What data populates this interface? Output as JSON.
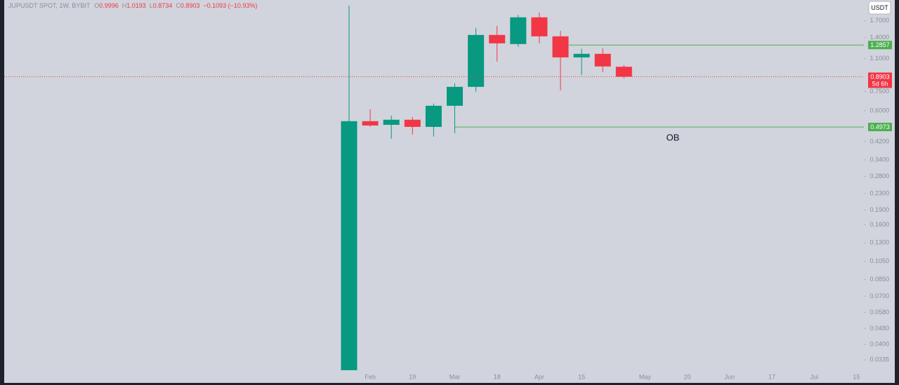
{
  "chart_data": {
    "type": "candlestick",
    "title": "JUPUSDT SPOT, 1W, BYBIT",
    "ohlc_legend": {
      "open": "O",
      "high": "H",
      "low": "L",
      "close": "C",
      "change": "−0.1093 (−10.93%)"
    },
    "currency": "USDT",
    "categories": [
      null,
      "Feb",
      null,
      "19",
      null,
      "Mar",
      null,
      "18",
      null,
      "Apr",
      null,
      "15",
      null,
      null,
      "May",
      null,
      "20",
      null,
      "Jun",
      null,
      "17",
      null,
      "Jul",
      null,
      "15"
    ],
    "open": [
      0.0297,
      0.532,
      0.51,
      0.541,
      0.498,
      0.636,
      0.792,
      1.445,
      1.3,
      1.772,
      1.422,
      1.114,
      1.161,
      0.9996,
      null,
      null,
      null,
      null,
      null,
      null,
      null,
      null,
      null,
      null,
      null
    ],
    "high": [
      2.03,
      0.611,
      0.567,
      0.558,
      0.652,
      0.825,
      1.568,
      1.606,
      1.82,
      1.876,
      1.517,
      1.229,
      1.24,
      1.0193,
      null,
      null,
      null,
      null,
      null,
      null,
      null,
      null,
      null,
      null,
      null
    ],
    "low": [
      0.0297,
      0.498,
      0.434,
      0.456,
      0.445,
      0.463,
      0.748,
      1.061,
      1.259,
      1.311,
      0.76,
      0.909,
      0.94,
      0.8734,
      null,
      null,
      null,
      null,
      null,
      null,
      null,
      null,
      null,
      null,
      null
    ],
    "close": [
      0.532,
      0.506,
      0.541,
      0.498,
      0.636,
      0.792,
      1.445,
      1.311,
      1.772,
      1.422,
      1.114,
      1.161,
      1.003,
      0.8903,
      null,
      null,
      null,
      null,
      null,
      null,
      null,
      null,
      null,
      null,
      null
    ],
    "up_color": "#089981",
    "down_color": "#f23645",
    "log_scale": true,
    "ylim": [
      0.0292,
      2.03
    ],
    "yticks": [
      {
        "value": 1.7,
        "label": "1.7000"
      },
      {
        "value": 1.4,
        "label": "1.4000"
      },
      {
        "value": 1.1,
        "label": "1.1000"
      },
      {
        "value": 0.75,
        "label": "0.7500"
      },
      {
        "value": 0.6,
        "label": "0.6000"
      },
      {
        "value": 0.42,
        "label": "0.4200"
      },
      {
        "value": 0.34,
        "label": "0.3400"
      },
      {
        "value": 0.28,
        "label": "0.2800"
      },
      {
        "value": 0.23,
        "label": "0.2300"
      },
      {
        "value": 0.19,
        "label": "0.1900"
      },
      {
        "value": 0.16,
        "label": "0.1600"
      },
      {
        "value": 0.13,
        "label": "0.1300"
      },
      {
        "value": 0.105,
        "label": "0.1050"
      },
      {
        "value": 0.085,
        "label": "0.0850"
      },
      {
        "value": 0.07,
        "label": "0.0700"
      },
      {
        "value": 0.058,
        "label": "0.0580"
      },
      {
        "value": 0.048,
        "label": "0.0480"
      },
      {
        "value": 0.04,
        "label": "0.0400"
      },
      {
        "value": 0.0335,
        "label": "0.0335"
      }
    ],
    "levels": [
      1.2857,
      0.4973
    ],
    "level_color": "#4caf50",
    "countdown": "5d 6h",
    "annotation": "OB"
  }
}
